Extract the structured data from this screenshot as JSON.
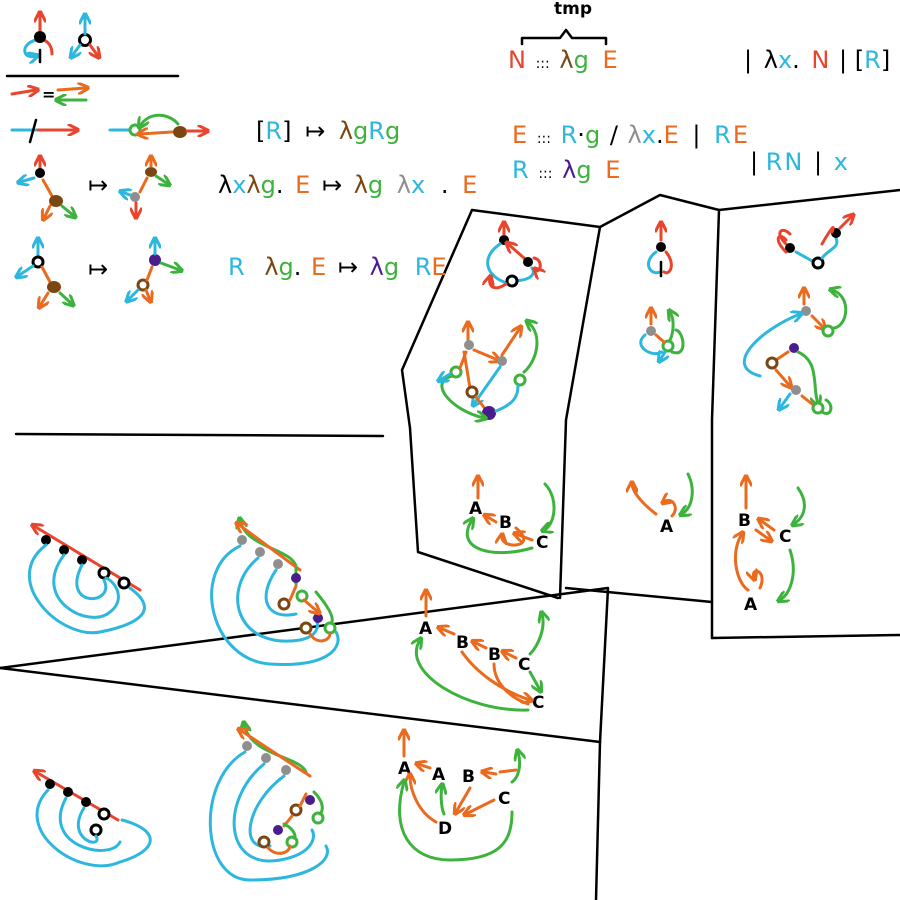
{
  "colors": {
    "red": "#e8442e",
    "orange": "#ea6a1e",
    "cyan": "#2db7de",
    "green": "#3db33d",
    "brown": "#7a4712",
    "purple": "#4a1c8c",
    "gray": "#8f8f8f",
    "ink": "#000000"
  },
  "rules": {
    "r1": {
      "lb": "[",
      "R": "R",
      "rb": "]",
      "arrow": "↦",
      "lam": "λ",
      "g": "g",
      ".": ".",
      "R2": "R",
      "g2": "g"
    },
    "r2": {
      "lam1": "λ",
      "x": "x",
      "lam2": "λ",
      "g": "g",
      "dot": ".",
      "E": "E",
      "arrow": "↦",
      "lam3": "λ",
      "g2": "g",
      "lam4": "λ",
      "x2": "x",
      "dot2": ".",
      "E2": "E"
    },
    "r3": {
      "R": "R",
      "lam": "λ",
      "g": "g",
      "dot": ".",
      "E": "E",
      "arrow": "↦",
      "lam2": "λ",
      "g2": "g",
      "R2": "R",
      "E2": "E"
    }
  },
  "grammar": {
    "tmp": "tmp",
    "brace": "}",
    "n_def": {
      "N": "N",
      "def": ":::",
      "lam": "λ",
      "g": "g",
      "E": "E"
    },
    "n_alt": {
      "bar1": "|",
      "lam": "λ",
      "x": "x",
      "dot": ".",
      "N": "N",
      "bar2": "|",
      "lb": "[",
      "R": "R",
      "rb": "]"
    },
    "e_def": {
      "E": "E",
      "def": ":::",
      "R": "R",
      "dot": "·",
      "g": "g",
      "bar1": "/",
      "lam": "λ",
      "x": "x",
      "dot2": ".",
      "E2": "E",
      "bar2": "|",
      "R2": "R",
      "E3": "E"
    },
    "r_def": {
      "R": "R",
      "def": ":::",
      "lam": "λ",
      "g": "g",
      "E": "E"
    },
    "r_alt": {
      "bar1": "|",
      "R": "R",
      "N": "N",
      "bar2": "|",
      "x": "x"
    }
  },
  "nodes": {
    "p1": {
      "a": "A",
      "b": "B",
      "c": "C"
    },
    "p2": {
      "a": "A"
    },
    "p3": {
      "b": "B",
      "c": "C",
      "a": "A"
    },
    "m1": {
      "a": "A",
      "b1": "B",
      "b2": "B",
      "c1": "C",
      "c2": "C"
    },
    "m2": {
      "a1": "A",
      "a2": "A",
      "b": "B",
      "c": "C",
      "d": "D"
    }
  }
}
